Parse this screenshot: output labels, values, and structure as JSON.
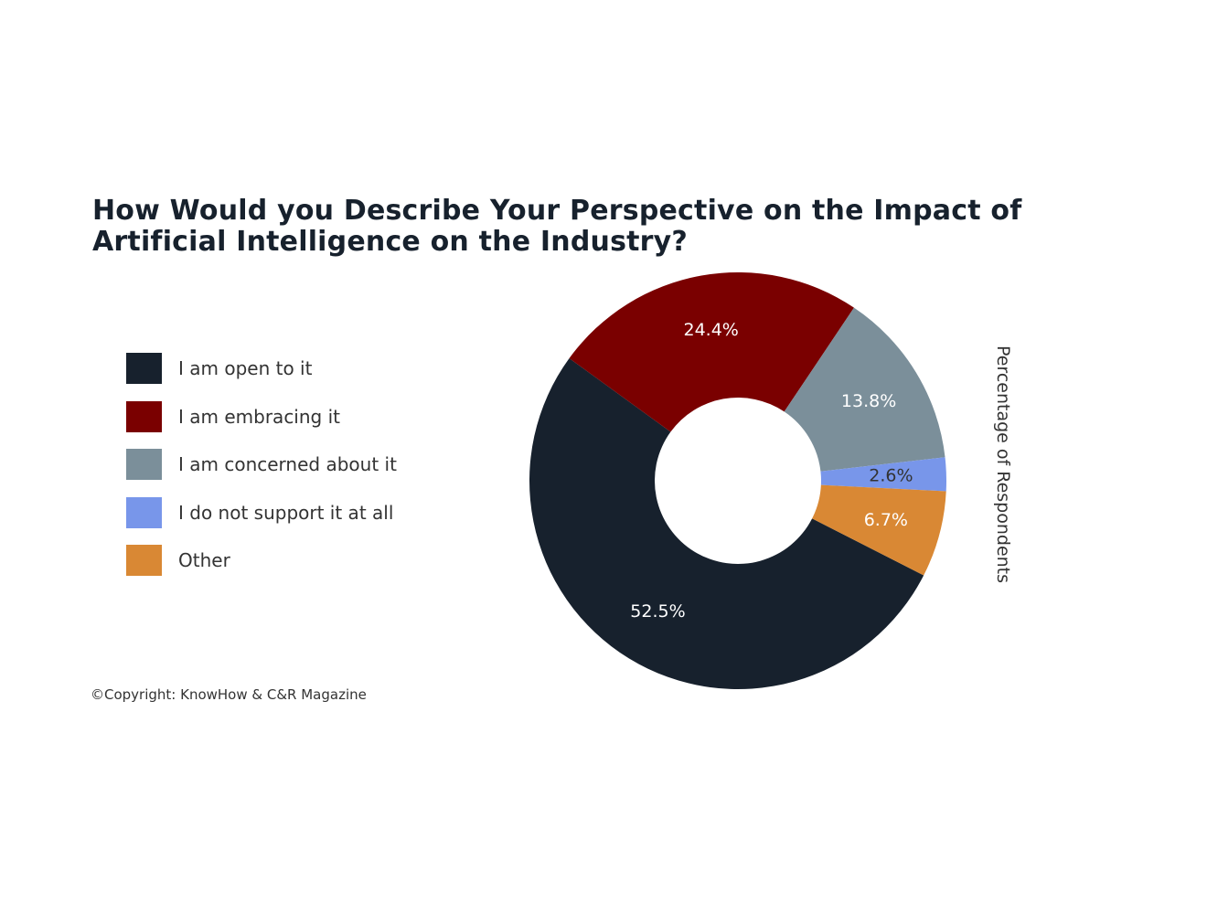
{
  "chart_data": {
    "type": "pie",
    "donut": true,
    "title": "How Would you Describe Your Perspective on the Impact of Artificial Intelligence on the Industry?",
    "axis_label": "Percentage of Respondents",
    "legend_position": "left",
    "categories": [
      "I am open to it",
      "I am embracing it",
      "I am concerned about it",
      "I do not support it at all",
      "Other"
    ],
    "values": [
      52.5,
      24.4,
      13.8,
      2.6,
      6.7
    ],
    "value_labels": [
      "52.5%",
      "24.4%",
      "13.8%",
      "2.6%",
      "6.7%"
    ],
    "colors": [
      "#17212d",
      "#7a0000",
      "#7b8f9a",
      "#7896ea",
      "#d98834"
    ],
    "label_colors": [
      "#ffffff",
      "#ffffff",
      "#ffffff",
      "#333333",
      "#ffffff"
    ]
  },
  "copyright": "©Copyright: KnowHow & C&R Magazine"
}
